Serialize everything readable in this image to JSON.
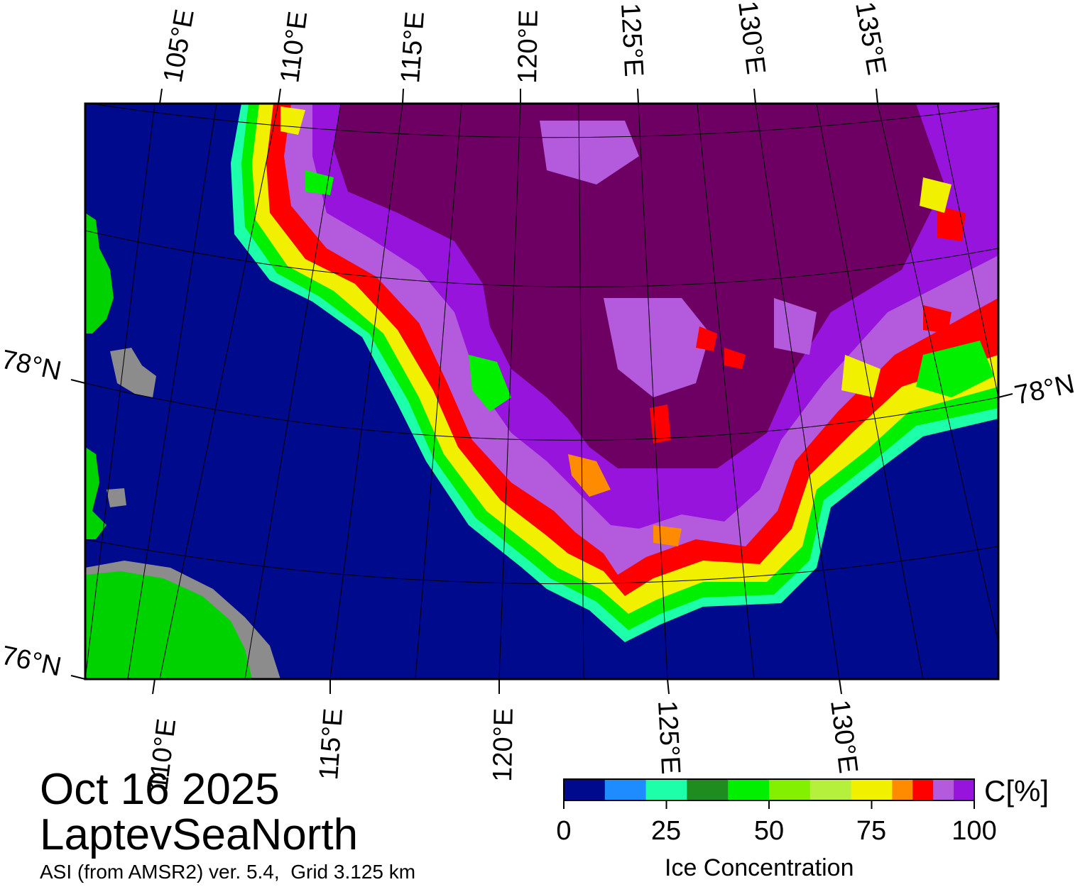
{
  "map": {
    "top_lon_labels": [
      "105°E",
      "110°E",
      "115°E",
      "120°E",
      "125°E",
      "130°E",
      "135°E"
    ],
    "bottom_lon_labels": [
      "110°E",
      "115°E",
      "120°E",
      "125°E",
      "130°E"
    ],
    "lat_labels_left": [
      "78°N",
      "76°N"
    ],
    "lat_labels_right": [
      "78°N"
    ],
    "colors": {
      "water": "#000a8c",
      "land": "#00d200",
      "coast_ice": "#8c8c8c",
      "ice_purple_dark": "#6e0064",
      "ice_purple": "#9614dc",
      "ice_lilac": "#b45adc"
    }
  },
  "title": {
    "date": "Oct 16 2025",
    "region": "LaptevSeaNorth",
    "product": "ASI (from AMSR2) ver. 5.4,  Grid 3.125 km"
  },
  "colorbar": {
    "title": "Ice Concentration",
    "unit": "C[%]",
    "ticks": [
      "0",
      "25",
      "50",
      "75",
      "100"
    ],
    "tick_values": [
      0,
      25,
      50,
      75,
      100
    ],
    "range": [
      0,
      100
    ],
    "bins": [
      {
        "from": 0,
        "to": 10,
        "color": "#000a8c"
      },
      {
        "from": 10,
        "to": 20,
        "color": "#1e8cff"
      },
      {
        "from": 20,
        "to": 30,
        "color": "#1effaa"
      },
      {
        "from": 30,
        "to": 40,
        "color": "#1e8c1e"
      },
      {
        "from": 40,
        "to": 50,
        "color": "#00f000"
      },
      {
        "from": 50,
        "to": 60,
        "color": "#82f000"
      },
      {
        "from": 60,
        "to": 70,
        "color": "#b4f03c"
      },
      {
        "from": 70,
        "to": 80,
        "color": "#f0f000"
      },
      {
        "from": 80,
        "to": 85,
        "color": "#ff8c00"
      },
      {
        "from": 85,
        "to": 90,
        "color": "#ff0000"
      },
      {
        "from": 90,
        "to": 95,
        "color": "#b45adc"
      },
      {
        "from": 95,
        "to": 100,
        "color": "#9614dc"
      }
    ]
  }
}
